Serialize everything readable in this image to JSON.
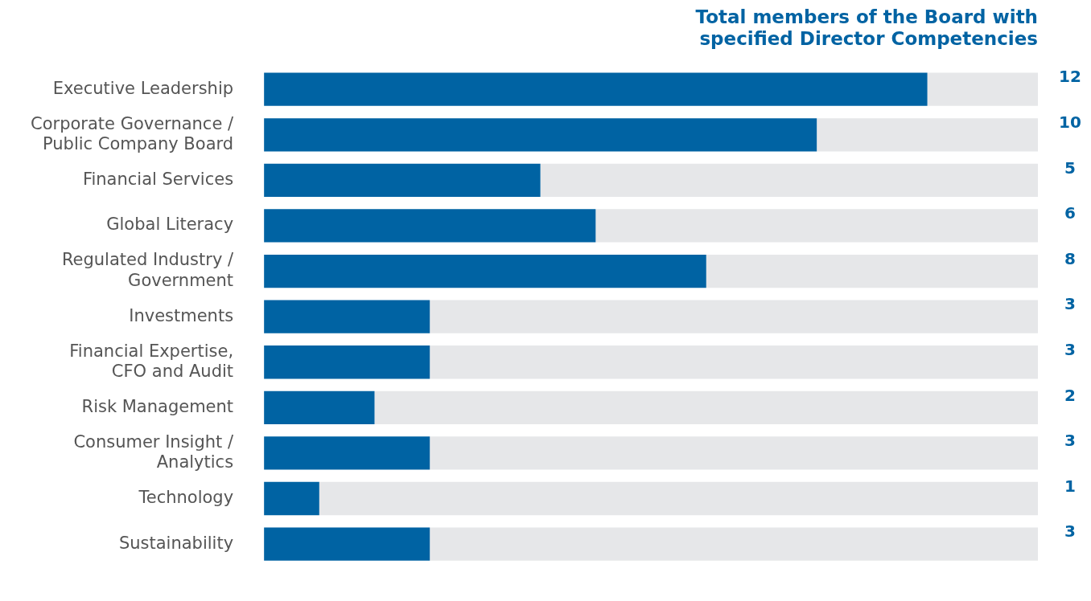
{
  "chart_data": {
    "type": "bar",
    "orientation": "horizontal",
    "stacked": true,
    "title": "Total members of the Board with\nspecified Director Competencies",
    "categories": [
      "Executive Leadership",
      "Corporate Governance /\nPublic Company Board",
      "Financial Services",
      "Global Literacy",
      "Regulated Industry /\nGovernment",
      "Investments",
      "Financial Expertise,\nCFO and Audit",
      "Risk Management",
      "Consumer Insight /\nAnalytics",
      "Technology",
      "Sustainability"
    ],
    "xlim": [
      0,
      14
    ],
    "tick_labels": "y",
    "grid": false,
    "legend": false,
    "series": [
      {
        "color": "#0063a3",
        "values": [
          12,
          10,
          5,
          6,
          8,
          3,
          3,
          2,
          3,
          1,
          3
        ],
        "value_labels": [
          "12",
          "10",
          "5",
          "6",
          "8",
          "3",
          "3",
          "2",
          "3",
          "1",
          "3"
        ]
      },
      {
        "color": "#e6e7e9",
        "values": [
          2,
          4,
          9,
          8,
          6,
          11,
          11,
          12,
          11,
          13,
          11
        ]
      }
    ]
  }
}
